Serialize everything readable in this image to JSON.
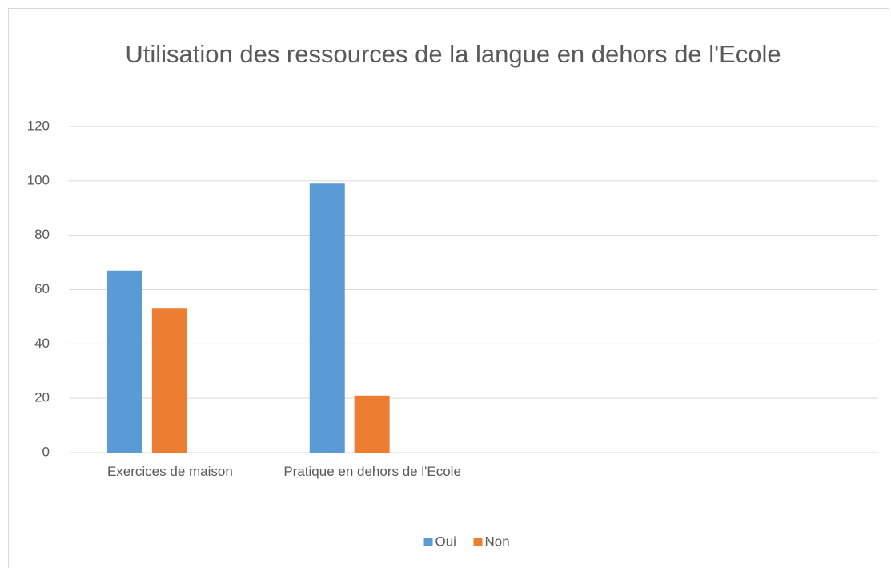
{
  "chart_data": {
    "type": "bar",
    "title": "Utilisation des ressources de la langue en dehors de l'Ecole",
    "categories": [
      "Exercices de maison",
      "Pratique en dehors de l'Ecole",
      null,
      null
    ],
    "series": [
      {
        "name": "Oui",
        "color": "#5b9bd5",
        "values": [
          67,
          99,
          null,
          null
        ]
      },
      {
        "name": "Non",
        "color": "#ed7d31",
        "values": [
          53,
          21,
          null,
          null
        ]
      }
    ],
    "ylim": [
      0,
      120
    ],
    "yticks": [
      0,
      20,
      40,
      60,
      80,
      100,
      120
    ],
    "grid": true,
    "legend": "bottom"
  }
}
